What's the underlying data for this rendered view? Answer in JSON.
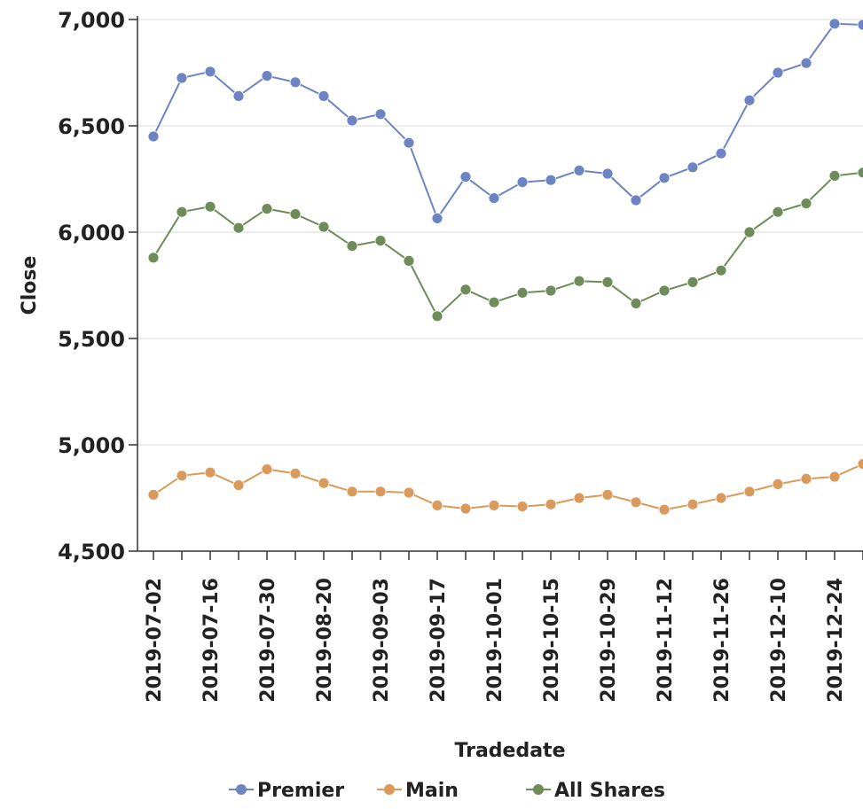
{
  "chart_data": {
    "type": "line",
    "xlabel": "Tradedate",
    "ylabel": "Close",
    "ylim": [
      4500,
      7000
    ],
    "yticks": [
      4500,
      5000,
      5500,
      6000,
      6500,
      7000
    ],
    "ytick_labels": [
      "4,500",
      "5,000",
      "5,500",
      "6,000",
      "6,500",
      "7,000"
    ],
    "grid": "horizontal",
    "legend_position": "bottom",
    "x": [
      "2019-07-02",
      "2019-07-09",
      "2019-07-16",
      "2019-07-23",
      "2019-07-30",
      "2019-08-06",
      "2019-08-20",
      "2019-08-27",
      "2019-09-03",
      "2019-09-10",
      "2019-09-17",
      "2019-09-24",
      "2019-10-01",
      "2019-10-08",
      "2019-10-15",
      "2019-10-22",
      "2019-10-29",
      "2019-11-05",
      "2019-11-12",
      "2019-11-19",
      "2019-11-26",
      "2019-12-03",
      "2019-12-10",
      "2019-12-17",
      "2019-12-24",
      "2019-12-31"
    ],
    "xtick_labels": [
      "2019-07-02",
      "2019-07-16",
      "2019-07-30",
      "2019-08-20",
      "2019-09-03",
      "2019-09-17",
      "2019-10-01",
      "2019-10-15",
      "2019-10-29",
      "2019-11-12",
      "2019-11-26",
      "2019-12-10",
      "2019-12-24"
    ],
    "series": [
      {
        "name": "Premier",
        "color": "#6d84c2",
        "values": [
          6450,
          6725,
          6755,
          6640,
          6735,
          6705,
          6640,
          6525,
          6555,
          6420,
          6065,
          6260,
          6160,
          6235,
          6245,
          6290,
          6275,
          6150,
          6255,
          6305,
          6370,
          6620,
          6750,
          6795,
          6980,
          6975
        ]
      },
      {
        "name": "Main",
        "color": "#d99a5b",
        "values": [
          4765,
          4855,
          4870,
          4810,
          4885,
          4865,
          4820,
          4780,
          4780,
          4775,
          4715,
          4700,
          4715,
          4710,
          4720,
          4750,
          4765,
          4730,
          4695,
          4720,
          4750,
          4780,
          4815,
          4840,
          4850,
          4910
        ]
      },
      {
        "name": "All Shares",
        "color": "#6e8b5a",
        "values": [
          5880,
          6095,
          6120,
          6020,
          6110,
          6085,
          6025,
          5935,
          5960,
          5865,
          5605,
          5730,
          5670,
          5715,
          5725,
          5770,
          5765,
          5665,
          5725,
          5765,
          5820,
          6000,
          6095,
          6135,
          6265,
          6280
        ]
      }
    ]
  }
}
